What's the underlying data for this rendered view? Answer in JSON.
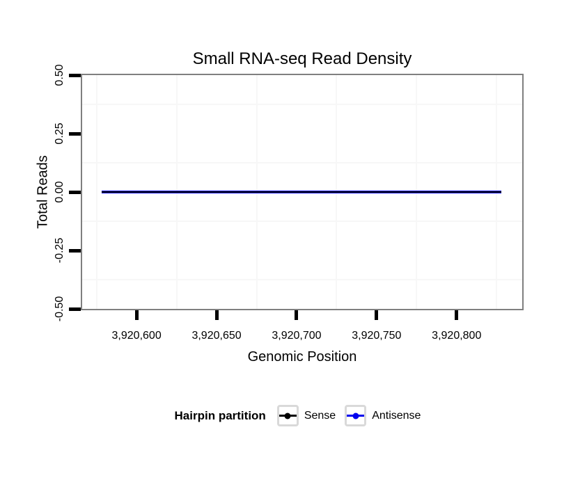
{
  "chart_data": {
    "type": "line",
    "title": "Small RNA-seq Read Density",
    "xlabel": "Genomic Position",
    "ylabel": "Total Reads",
    "x_domain": [
      3920566,
      3920841
    ],
    "y_domain": [
      -0.5,
      0.5
    ],
    "grid": "minor-only",
    "x_ticks": [
      {
        "value": 3920600,
        "label": "3,920,600"
      },
      {
        "value": 3920650,
        "label": "3,920,650"
      },
      {
        "value": 3920700,
        "label": "3,920,700"
      },
      {
        "value": 3920750,
        "label": "3,920,750"
      },
      {
        "value": 3920800,
        "label": "3,920,800"
      }
    ],
    "y_ticks": [
      {
        "value": 0.5,
        "label": "0.50"
      },
      {
        "value": 0.25,
        "label": "0.25"
      },
      {
        "value": 0.0,
        "label": "0.00"
      },
      {
        "value": -0.25,
        "label": "-0.25"
      },
      {
        "value": -0.5,
        "label": "-0.50"
      }
    ],
    "x_minor_gridlines": [
      3920575,
      3920625,
      3920675,
      3920725,
      3920775,
      3920825
    ],
    "y_minor_gridlines": [
      0.375,
      0.125,
      -0.125,
      -0.375
    ],
    "series": [
      {
        "name": "Sense",
        "color": "#000000",
        "x_start": 3920578,
        "x_end": 3920828,
        "y": 0
      },
      {
        "name": "Antisense",
        "color": "#0000EE",
        "x_start": 3920578,
        "x_end": 3920828,
        "y": 0
      }
    ],
    "legend": {
      "title": "Hairpin partition",
      "position": "bottom",
      "items": [
        {
          "label": "Sense",
          "color": "#000000"
        },
        {
          "label": "Antisense",
          "color": "#0000EE"
        }
      ]
    }
  },
  "colors": {
    "background": "#ffffff",
    "panel_border": "#7f7f7f",
    "tick": "#000000",
    "grid_minor": "#f7f7f7",
    "legend_key_border": "#d9d9d9",
    "text": "#000000"
  }
}
